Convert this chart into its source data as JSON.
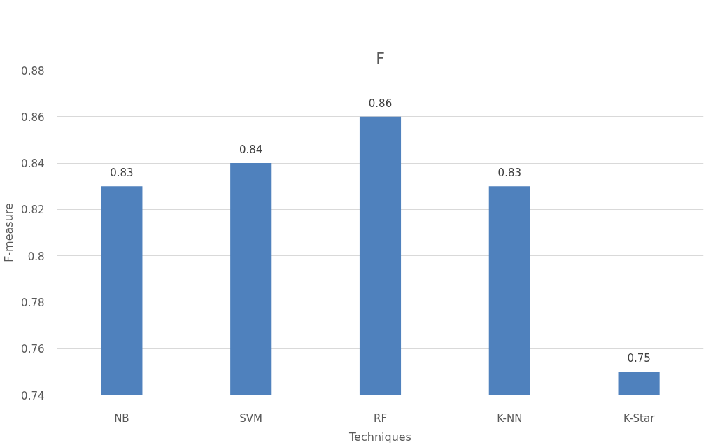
{
  "chart_data": {
    "type": "bar",
    "title": "F",
    "xlabel": "Techniques",
    "ylabel": "F-measure",
    "categories": [
      "NB",
      "SVM",
      "RF",
      "K-NN",
      "K-Star"
    ],
    "values": [
      0.83,
      0.84,
      0.86,
      0.83,
      0.75
    ],
    "color": "#4f81bd",
    "ylim": [
      0.74,
      0.88
    ],
    "yticks": [
      0.74,
      0.76,
      0.78,
      0.8,
      0.82,
      0.84,
      0.86,
      0.88
    ],
    "grid": "y",
    "data_labels": true
  }
}
